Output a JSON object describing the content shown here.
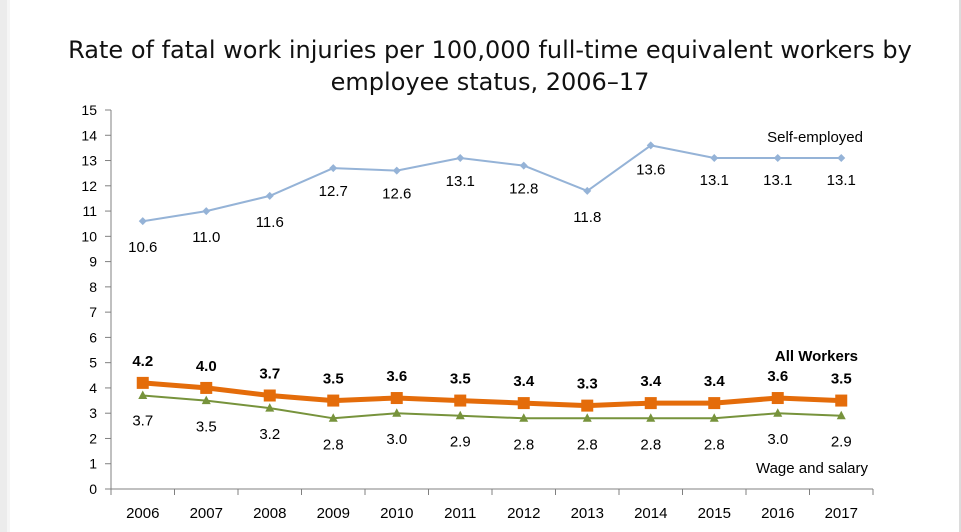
{
  "chart_data": {
    "type": "line",
    "title": "Rate of fatal work injuries per 100,000 full-time equivalent workers by employee status, 2006–17",
    "xlabel": "",
    "ylabel": "",
    "ylim": [
      0,
      15
    ],
    "y_ticks": [
      "0",
      "1",
      "2",
      "3",
      "4",
      "5",
      "6",
      "7",
      "8",
      "9",
      "10",
      "11",
      "12",
      "13",
      "14",
      "15"
    ],
    "grid": false,
    "categories": [
      "2006",
      "2007",
      "2008",
      "2009",
      "2010",
      "2011",
      "2012",
      "2013",
      "2014",
      "2015",
      "2016",
      "2017"
    ],
    "series": [
      {
        "name": "Self-employed",
        "color": "#95b3d7",
        "marker": "diamond",
        "values": [
          10.6,
          11.0,
          11.6,
          12.7,
          12.6,
          13.1,
          12.8,
          11.8,
          13.6,
          13.1,
          13.1,
          13.1
        ],
        "labels": [
          "10.6",
          "11.0",
          "11.6",
          "12.7",
          "12.6",
          "13.1",
          "12.8",
          "11.8",
          "13.6",
          "13.1",
          "13.1",
          "13.1"
        ]
      },
      {
        "name": "All Workers",
        "color": "#e46c0a",
        "marker": "square",
        "values": [
          4.2,
          4.0,
          3.7,
          3.5,
          3.6,
          3.5,
          3.4,
          3.3,
          3.4,
          3.4,
          3.6,
          3.5
        ],
        "labels": [
          "4.2",
          "4.0",
          "3.7",
          "3.5",
          "3.6",
          "3.5",
          "3.4",
          "3.3",
          "3.4",
          "3.4",
          "3.6",
          "3.5"
        ]
      },
      {
        "name": "Wage and salary",
        "color": "#77933c",
        "marker": "triangle",
        "values": [
          3.7,
          3.5,
          3.2,
          2.8,
          3.0,
          2.9,
          2.8,
          2.8,
          2.8,
          2.8,
          3.0,
          2.9
        ],
        "labels": [
          "3.7",
          "3.5",
          "3.2",
          "2.8",
          "3.0",
          "2.9",
          "2.8",
          "2.8",
          "2.8",
          "2.8",
          "3.0",
          "2.9"
        ]
      }
    ]
  }
}
